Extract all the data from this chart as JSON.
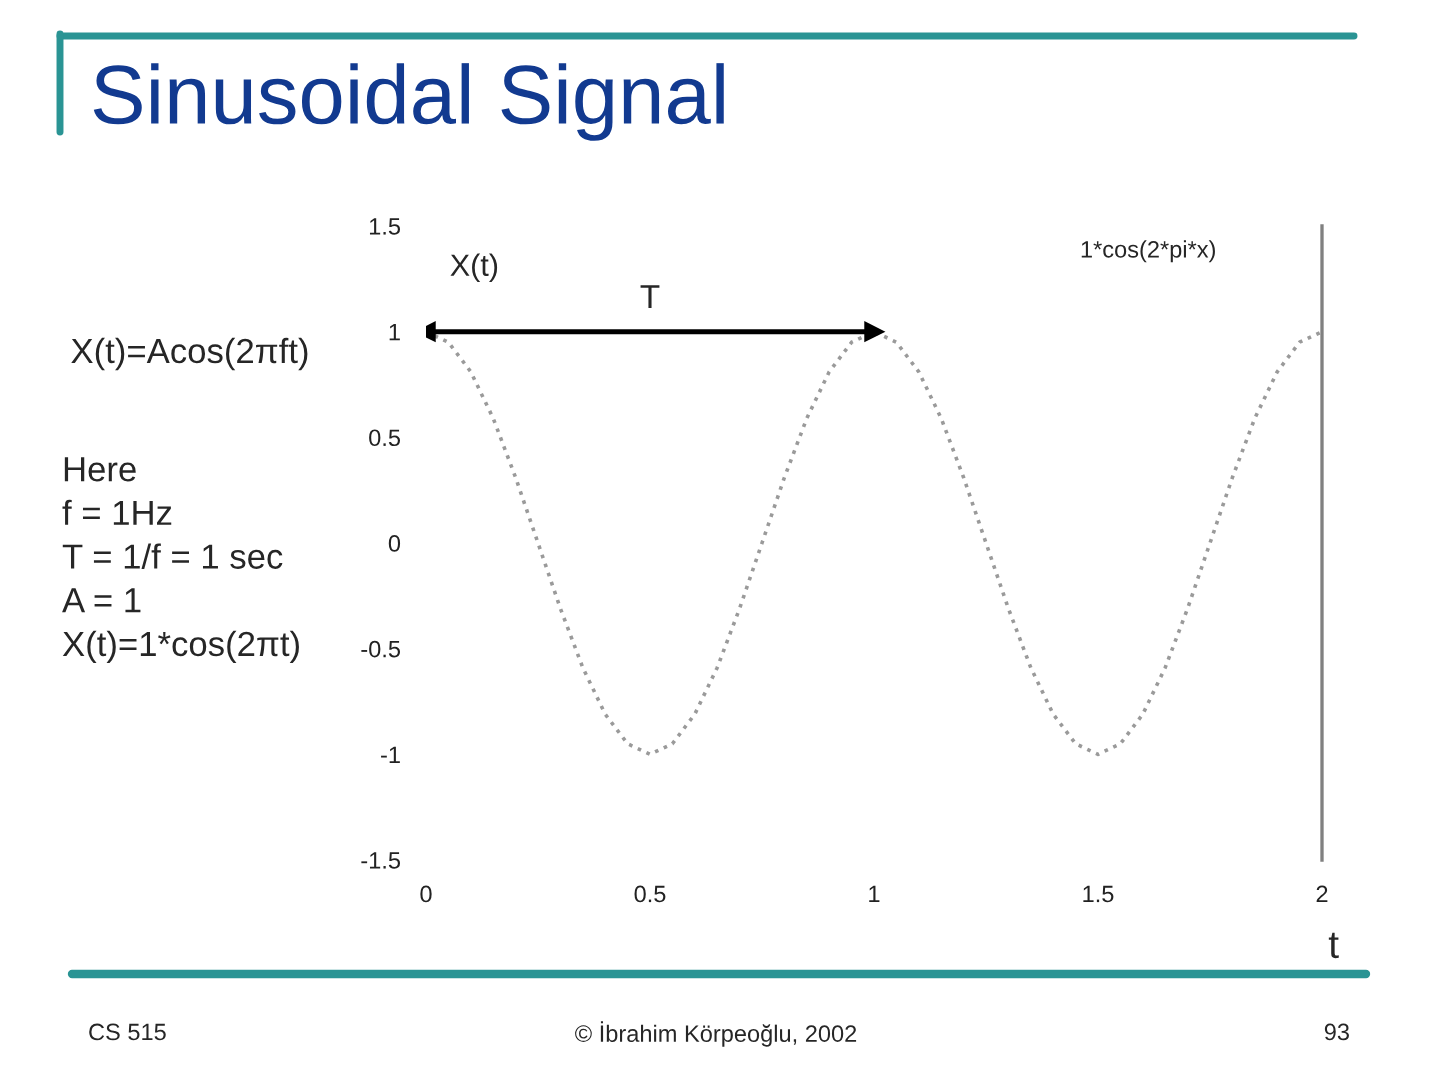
{
  "chart_data": {
    "type": "line",
    "title": "Sinusoidal Signal",
    "xlabel": "t",
    "ylabel": "X(t)",
    "xlim": [
      0,
      2
    ],
    "ylim": [
      -1.5,
      1.5
    ],
    "xticks": [
      0,
      0.5,
      1,
      1.5,
      2
    ],
    "yticks": [
      -1.5,
      -1,
      -0.5,
      0,
      0.5,
      1,
      1.5
    ],
    "series": [
      {
        "color": "#9a9a9a",
        "line_style": "dotted",
        "x": [
          0,
          0.05,
          0.1,
          0.15,
          0.2,
          0.25,
          0.3,
          0.35,
          0.4,
          0.45,
          0.5,
          0.55,
          0.6,
          0.65,
          0.7,
          0.75,
          0.8,
          0.85,
          0.9,
          0.95,
          1,
          1.05,
          1.1,
          1.15,
          1.2,
          1.25,
          1.3,
          1.35,
          1.4,
          1.45,
          1.5,
          1.55,
          1.6,
          1.65,
          1.7,
          1.75,
          1.8,
          1.85,
          1.9,
          1.95,
          2
        ],
        "values": [
          1,
          0.95,
          0.81,
          0.59,
          0.31,
          0,
          -0.31,
          -0.59,
          -0.81,
          -0.95,
          -1,
          -0.95,
          -0.81,
          -0.59,
          -0.31,
          0,
          0.31,
          0.59,
          0.81,
          0.95,
          1,
          0.95,
          0.81,
          0.59,
          0.31,
          0,
          -0.31,
          -0.59,
          -0.81,
          -0.95,
          -1,
          -0.95,
          -0.81,
          -0.59,
          -0.31,
          0,
          0.31,
          0.59,
          0.81,
          0.95,
          1
        ]
      },
      {
        "color": "#000000",
        "marker": "triangle",
        "x": [
          0,
          1
        ],
        "values": [
          1,
          1
        ]
      }
    ],
    "annotations": [
      {
        "text": "T",
        "x": 0.5,
        "y": 1
      },
      "1*cos(2*pi*x)",
      "X(t)=Acos(2πft)",
      "Here\nf = 1Hz\nT = 1/f = 1 sec\nA = 1\nX(t)=1*cos(2πt)",
      "CS 515",
      "© İbrahim Körpeoğlu, 2002",
      "93"
    ]
  }
}
